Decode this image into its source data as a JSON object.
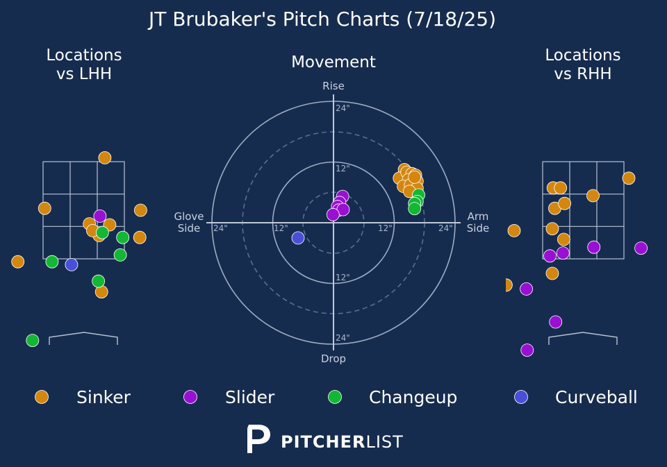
{
  "title": "JT Brubaker's Pitch Charts (7/18/25)",
  "panels": {
    "lhh_title_line1": "Locations",
    "lhh_title_line2": "vs LHH",
    "movement_title": "Movement",
    "rhh_title_line1": "Locations",
    "rhh_title_line2": "vs RHH"
  },
  "movement_labels": {
    "rise": "Rise",
    "drop": "Drop",
    "glove_line1": "Glove",
    "glove_line2": "Side",
    "arm_line1": "Arm",
    "arm_line2": "Side",
    "ring_24_top": "24\"",
    "ring_12_top": "12\"",
    "ring_12_bottom": "12\"",
    "ring_24_bottom": "24\"",
    "ring_24_left": "24\"",
    "ring_12_left": "12\"",
    "ring_12_right": "12\"",
    "ring_24_right": "24\""
  },
  "brand": {
    "bold": "PITCHER",
    "thin": "LIST"
  },
  "colors": {
    "background": "#162c4f",
    "Sinker": "#d4870f",
    "Slider": "#9a0fd4",
    "Changeup": "#12b834",
    "Curveball": "#4a4fd8"
  },
  "chart_data": [
    {
      "type": "scatter",
      "title": "Locations vs LHH",
      "x_unit": "zone widths (0-1 = strike zone, catcher view)",
      "y_unit": "zone heights (0-1 = strike zone)",
      "series": [
        {
          "name": "Sinker",
          "points": [
            [
              0.76,
              1.04
            ],
            [
              0.02,
              0.52
            ],
            [
              0.57,
              0.36
            ],
            [
              0.69,
              0.24
            ],
            [
              1.2,
              0.5
            ],
            [
              0.61,
              0.29
            ],
            [
              0.82,
              0.35
            ],
            [
              1.19,
              0.22
            ],
            [
              -0.31,
              -0.03
            ],
            [
              0.72,
              -0.34
            ]
          ]
        },
        {
          "name": "Slider",
          "points": [
            [
              0.7,
              0.44
            ]
          ]
        },
        {
          "name": "Changeup",
          "points": [
            [
              0.73,
              0.27
            ],
            [
              0.98,
              0.22
            ],
            [
              0.95,
              0.04
            ],
            [
              0.11,
              -0.03
            ],
            [
              0.68,
              -0.23
            ],
            [
              -0.13,
              -0.84
            ]
          ]
        },
        {
          "name": "Curveball",
          "points": [
            [
              0.35,
              -0.06
            ]
          ]
        }
      ]
    },
    {
      "type": "scatter",
      "title": "Movement",
      "x_label": "Glove Side / Arm Side (inches)",
      "y_label": "Drop / Rise (inches)",
      "xlim": [
        -24,
        24
      ],
      "ylim": [
        -24,
        24
      ],
      "series": [
        {
          "name": "Sinker",
          "points": [
            [
              14,
              10.5
            ],
            [
              13,
              8.8
            ],
            [
              14.5,
              10
            ],
            [
              15.5,
              9.7
            ],
            [
              16.2,
              9.4
            ],
            [
              14.8,
              8.5
            ],
            [
              16.5,
              8.2
            ],
            [
              13.8,
              7.2
            ],
            [
              15.2,
              7.5
            ],
            [
              16.5,
              6.8
            ],
            [
              15,
              6.2
            ],
            [
              16,
              9
            ]
          ]
        },
        {
          "name": "Slider",
          "points": [
            [
              1.8,
              5.2
            ],
            [
              1.2,
              4.0
            ],
            [
              0.8,
              3.2
            ],
            [
              1.0,
              2.5
            ],
            [
              1.9,
              2.6
            ],
            [
              -0.1,
              1.6
            ]
          ]
        },
        {
          "name": "Changeup",
          "points": [
            [
              16.8,
              5.5
            ],
            [
              16.5,
              4.2
            ],
            [
              16.0,
              3.8
            ],
            [
              16.0,
              2.8
            ]
          ]
        },
        {
          "name": "Curveball",
          "points": [
            [
              -7,
              -3
            ]
          ]
        }
      ]
    },
    {
      "type": "scatter",
      "title": "Locations vs RHH",
      "x_unit": "zone widths (0-1 = strike zone, catcher view)",
      "y_unit": "zone heights (0-1 = strike zone)",
      "series": [
        {
          "name": "Sinker",
          "points": [
            [
              1.06,
              0.83
            ],
            [
              0.13,
              0.73
            ],
            [
              0.22,
              0.73
            ],
            [
              0.62,
              0.65
            ],
            [
              0.15,
              0.52
            ],
            [
              0.27,
              0.57
            ],
            [
              -0.35,
              0.29
            ],
            [
              0.12,
              0.31
            ],
            [
              0.26,
              0.2
            ],
            [
              0.12,
              -0.15
            ],
            [
              -0.45,
              -0.27
            ]
          ]
        },
        {
          "name": "Slider",
          "points": [
            [
              0.63,
              0.12
            ],
            [
              1.21,
              0.11
            ],
            [
              0.25,
              0.06
            ],
            [
              0.09,
              0.03
            ],
            [
              -0.2,
              -0.31
            ],
            [
              0.16,
              -0.65
            ],
            [
              -0.19,
              -0.94
            ]
          ]
        },
        {
          "name": "Changeup",
          "points": []
        },
        {
          "name": "Curveball",
          "points": []
        }
      ]
    }
  ],
  "legend": [
    {
      "name": "Sinker",
      "color": "#d4870f"
    },
    {
      "name": "Slider",
      "color": "#9a0fd4"
    },
    {
      "name": "Changeup",
      "color": "#12b834"
    },
    {
      "name": "Curveball",
      "color": "#4a4fd8"
    }
  ]
}
